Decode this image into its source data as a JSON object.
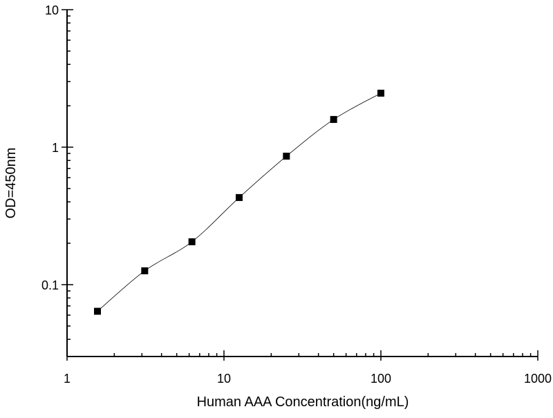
{
  "chart_data": {
    "type": "scatter",
    "title": "",
    "xlabel": "Human AAA Concentration(ng/mL)",
    "ylabel": "OD=450nm",
    "x_scale": "log",
    "y_scale": "log",
    "xlim": [
      1,
      1000
    ],
    "ylim": [
      0.03,
      10
    ],
    "x_ticks": [
      1,
      10,
      100,
      1000
    ],
    "x_tick_labels": [
      "1",
      "10",
      "100",
      "1000"
    ],
    "y_ticks": [
      0.1,
      1,
      10
    ],
    "y_tick_labels": [
      "0.1",
      "1",
      "10"
    ],
    "grid": false,
    "series": [
      {
        "marker": "square",
        "color": "#000000",
        "x": [
          1.5625,
          3.125,
          6.25,
          12.5,
          25,
          50,
          100
        ],
        "y": [
          0.064,
          0.126,
          0.205,
          0.43,
          0.86,
          1.59,
          2.47
        ]
      }
    ],
    "fit_curve": {
      "type": "smooth line",
      "color": "#000000"
    }
  }
}
